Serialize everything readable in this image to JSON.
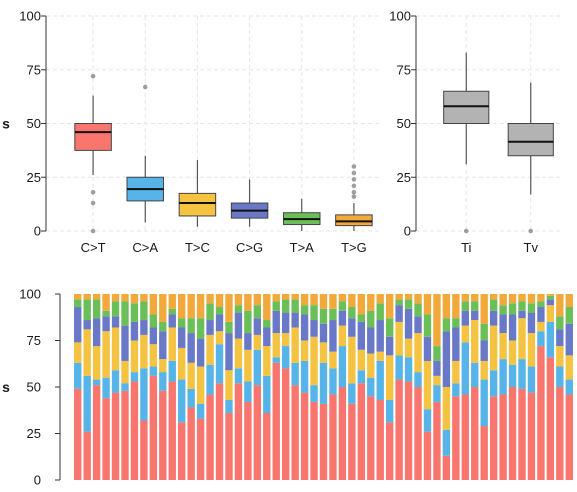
{
  "chart_data": [
    {
      "type": "box",
      "ylabel": "s",
      "ylim": [
        0,
        100
      ],
      "yticks": [
        "0",
        "25",
        "50",
        "75",
        "100"
      ],
      "categories": [
        "C>T",
        "C>A",
        "T>C",
        "C>G",
        "T>A",
        "T>G"
      ],
      "colors": [
        "#F8766D",
        "#56B4E9",
        "#F5C342",
        "#6A78C8",
        "#6BBF59",
        "#F2A93B"
      ],
      "boxes": [
        {
          "whisker_low": 26,
          "q1": 37.5,
          "median": 46,
          "q3": 50,
          "whisker_high": 63,
          "outliers": [
            72,
            18,
            13,
            0
          ]
        },
        {
          "whisker_low": 4,
          "q1": 14,
          "median": 19.5,
          "q3": 25,
          "whisker_high": 35,
          "outliers": [
            67
          ]
        },
        {
          "whisker_low": 2,
          "q1": 7,
          "median": 13,
          "q3": 17.5,
          "whisker_high": 33,
          "outliers": []
        },
        {
          "whisker_low": 2,
          "q1": 6,
          "median": 9.5,
          "q3": 13,
          "whisker_high": 24,
          "outliers": []
        },
        {
          "whisker_low": 0,
          "q1": 3,
          "median": 5.5,
          "q3": 8.5,
          "whisker_high": 15,
          "outliers": []
        },
        {
          "whisker_low": 0,
          "q1": 2.5,
          "median": 4.5,
          "q3": 7.5,
          "whisker_high": 13,
          "outliers": [
            30,
            27,
            24,
            21,
            18,
            16
          ]
        }
      ]
    },
    {
      "type": "box",
      "ylim": [
        0,
        100
      ],
      "yticks": [
        "0",
        "25",
        "50",
        "75",
        "100"
      ],
      "categories": [
        "Ti",
        "Tv"
      ],
      "colors": [
        "#B3B3B3",
        "#B3B3B3"
      ],
      "boxes": [
        {
          "whisker_low": 31,
          "q1": 50,
          "median": 58,
          "q3": 65,
          "whisker_high": 83,
          "outliers": [
            0
          ]
        },
        {
          "whisker_low": 17,
          "q1": 35,
          "median": 41.5,
          "q3": 50,
          "whisker_high": 69,
          "outliers": [
            0
          ]
        }
      ]
    },
    {
      "type": "stacked-bar",
      "ylabel": "s",
      "ylim": [
        0,
        100
      ],
      "yticks": [
        "0",
        "25",
        "50",
        "75",
        "100"
      ],
      "series": [
        {
          "name": "C>T",
          "color": "#F8766D",
          "values": [
            49,
            26,
            51,
            44,
            47,
            48,
            53,
            32,
            56,
            48,
            53,
            31,
            39,
            33,
            46,
            52,
            36,
            52,
            42,
            51,
            36,
            63,
            60,
            51,
            47,
            42,
            41,
            46,
            50,
            41,
            52,
            45,
            43,
            31,
            54,
            53,
            50,
            26,
            42,
            13,
            45,
            46,
            50,
            29,
            45,
            46,
            50,
            49,
            47,
            72,
            66,
            50,
            46
          ]
        },
        {
          "name": "C>A",
          "color": "#56B4E9",
          "values": [
            14,
            30,
            3,
            11,
            12,
            4,
            5,
            28,
            5,
            10,
            11,
            23,
            10,
            8,
            16,
            21,
            7,
            8,
            11,
            19,
            20,
            3,
            12,
            12,
            17,
            9,
            22,
            14,
            22,
            11,
            7,
            10,
            21,
            12,
            13,
            13,
            8,
            12,
            9,
            14,
            7,
            28,
            13,
            25,
            14,
            19,
            12,
            16,
            14,
            8,
            19,
            11,
            8
          ]
        },
        {
          "name": "T>C",
          "color": "#F5C342",
          "values": [
            11,
            25,
            18,
            25,
            23,
            12,
            17,
            18,
            12,
            7,
            18,
            17,
            14,
            20,
            16,
            7,
            16,
            16,
            17,
            8,
            16,
            13,
            7,
            19,
            11,
            26,
            11,
            9,
            11,
            25,
            11,
            13,
            5,
            24,
            18,
            10,
            21,
            26,
            5,
            23,
            12,
            9,
            23,
            10,
            24,
            14,
            13,
            22,
            18,
            5,
            9,
            11,
            13
          ]
        },
        {
          "name": "C>G",
          "color": "#6A78C8",
          "values": [
            19,
            5,
            15,
            8,
            6,
            19,
            10,
            8,
            9,
            15,
            7,
            11,
            16,
            15,
            8,
            9,
            20,
            14,
            9,
            9,
            10,
            12,
            11,
            8,
            14,
            9,
            10,
            17,
            8,
            10,
            15,
            14,
            17,
            10,
            9,
            16,
            9,
            13,
            8,
            30,
            18,
            8,
            5,
            11,
            8,
            10,
            14,
            4,
            11,
            8,
            3,
            9,
            17
          ]
        },
        {
          "name": "T>A",
          "color": "#6BBF59",
          "values": [
            4,
            11,
            10,
            3,
            8,
            13,
            10,
            10,
            7,
            5,
            3,
            5,
            8,
            11,
            9,
            4,
            6,
            4,
            12,
            7,
            4,
            5,
            7,
            7,
            5,
            8,
            8,
            6,
            5,
            6,
            4,
            9,
            9,
            10,
            3,
            5,
            7,
            12,
            8,
            7,
            5,
            5,
            5,
            9,
            6,
            5,
            6,
            5,
            5,
            3,
            2,
            7,
            9
          ]
        },
        {
          "name": "T>G",
          "color": "#F2A93B",
          "values": [
            3,
            3,
            3,
            9,
            4,
            4,
            5,
            4,
            11,
            15,
            8,
            13,
            13,
            13,
            5,
            7,
            15,
            6,
            9,
            6,
            14,
            4,
            3,
            3,
            6,
            6,
            8,
            8,
            4,
            7,
            11,
            9,
            5,
            13,
            3,
            3,
            5,
            11,
            28,
            13,
            13,
            4,
            4,
            16,
            3,
            6,
            5,
            4,
            5,
            4,
            1,
            12,
            7
          ]
        }
      ]
    }
  ]
}
